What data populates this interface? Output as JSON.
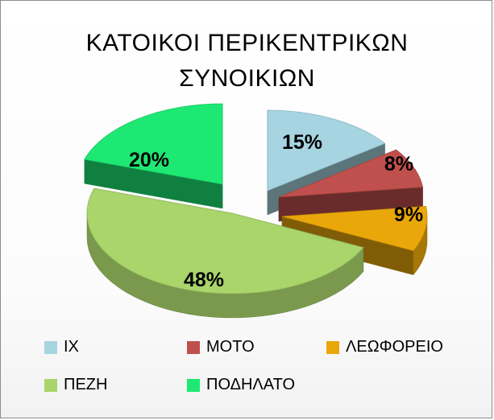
{
  "chart_data": {
    "type": "pie",
    "title": [
      "ΚΑΤΟΙΚΟΙ ΠΕΡΙΚΕΝΤΡΙΚΩΝ",
      "ΣΥΝΟΙΚΙΩΝ"
    ],
    "style": "3d-exploded",
    "legend_position": "bottom",
    "slices": [
      {
        "label": "ΙΧ",
        "value": 15,
        "text": "15%",
        "color": "#a6d4e0"
      },
      {
        "label": "ΜΟΤΟ",
        "value": 8,
        "text": "8%",
        "color": "#c0504d"
      },
      {
        "label": "ΛΕΩΦΟΡΕΙΟ",
        "value": 9,
        "text": "9%",
        "color": "#eaa70a"
      },
      {
        "label": "ΠΕΖΗ",
        "value": 48,
        "text": "48%",
        "color": "#a9d56b"
      },
      {
        "label": "ΠΟΔΗΛΑΤΟ",
        "value": 20,
        "text": "20%",
        "color": "#1de874"
      }
    ]
  }
}
